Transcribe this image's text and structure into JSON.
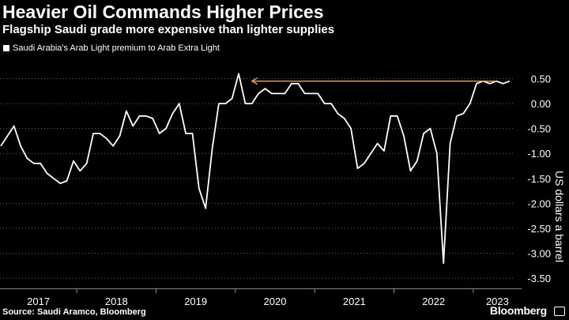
{
  "header": {
    "title": "Heavier Oil Commands Higher Prices",
    "subtitle": "Flagship Saudi grade more expensive than lighter supplies"
  },
  "footer": {
    "source": "Source: Saudi Aramco, Bloomberg",
    "brand": "Bloomberg"
  },
  "colors": {
    "background": "#000000",
    "line": "#ffffff",
    "arrow": "#f0a050",
    "grid": "#666666"
  },
  "chart_data": {
    "type": "line",
    "title": "Heavier Oil Commands Higher Prices",
    "subtitle": "Flagship Saudi grade more expensive than lighter supplies",
    "ylabel": "US dollars a barrel",
    "xlabel": "",
    "ylim": [
      -3.5,
      0.5
    ],
    "yticks": [
      "0.50",
      "0.00",
      "-0.50",
      "-1.00",
      "-1.50",
      "-2.00",
      "-2.50",
      "-3.00",
      "-3.50"
    ],
    "ytick_values": [
      0.5,
      0,
      -0.5,
      -1,
      -1.5,
      -2,
      -2.5,
      -3,
      -3.5
    ],
    "x_start": "2017-01",
    "x_end": "2023-06",
    "xticks": [
      "2017",
      "2018",
      "2019",
      "2020",
      "2021",
      "2022",
      "2023"
    ],
    "grid": "horizontal dotted",
    "legend": "top-left",
    "series": [
      {
        "name": "Saudi Arabia's Arab Light premium to Arab Extra Light",
        "x": [
          "2017-01",
          "2017-02",
          "2017-03",
          "2017-04",
          "2017-05",
          "2017-06",
          "2017-07",
          "2017-08",
          "2017-09",
          "2017-10",
          "2017-11",
          "2017-12",
          "2018-01",
          "2018-02",
          "2018-03",
          "2018-04",
          "2018-05",
          "2018-06",
          "2018-07",
          "2018-08",
          "2018-09",
          "2018-10",
          "2018-11",
          "2018-12",
          "2019-01",
          "2019-02",
          "2019-03",
          "2019-04",
          "2019-05",
          "2019-06",
          "2019-07",
          "2019-08",
          "2019-09",
          "2019-10",
          "2019-11",
          "2019-12",
          "2020-01",
          "2020-02",
          "2020-03",
          "2020-04",
          "2020-05",
          "2020-06",
          "2020-07",
          "2020-08",
          "2020-09",
          "2020-10",
          "2020-11",
          "2020-12",
          "2021-01",
          "2021-02",
          "2021-03",
          "2021-04",
          "2021-05",
          "2021-06",
          "2021-07",
          "2021-08",
          "2021-09",
          "2021-10",
          "2021-11",
          "2021-12",
          "2022-01",
          "2022-02",
          "2022-03",
          "2022-04",
          "2022-05",
          "2022-06",
          "2022-07",
          "2022-08",
          "2022-09",
          "2022-10",
          "2022-11",
          "2022-12",
          "2023-01",
          "2023-02",
          "2023-03",
          "2023-04",
          "2023-05",
          "2023-06"
        ],
        "values": [
          -0.85,
          -0.65,
          -0.45,
          -0.85,
          -1.1,
          -1.2,
          -1.2,
          -1.4,
          -1.5,
          -1.6,
          -1.55,
          -1.15,
          -1.35,
          -1.2,
          -0.6,
          -0.6,
          -0.7,
          -0.85,
          -0.65,
          -0.15,
          -0.45,
          -0.25,
          -0.25,
          -0.3,
          -0.6,
          -0.5,
          -0.2,
          0.0,
          -0.6,
          -0.6,
          -1.7,
          -2.1,
          -0.9,
          0.0,
          0.0,
          0.1,
          0.6,
          0.0,
          0.0,
          0.2,
          0.3,
          0.2,
          0.2,
          0.2,
          0.4,
          0.4,
          0.2,
          0.2,
          0.2,
          0.0,
          0.0,
          -0.2,
          -0.3,
          -0.5,
          -1.3,
          -1.2,
          -1.0,
          -0.8,
          -0.95,
          -0.25,
          -0.25,
          -0.65,
          -1.35,
          -1.15,
          -0.6,
          -0.5,
          -1.0,
          -3.2,
          -0.8,
          -0.25,
          -0.2,
          0.0,
          0.4,
          0.45,
          0.4,
          0.45,
          0.4,
          0.45
        ]
      }
    ],
    "annotation": {
      "type": "arrow",
      "label": "",
      "from_x": "2023-04",
      "to_x": "2020-03",
      "y": 0.45
    }
  }
}
